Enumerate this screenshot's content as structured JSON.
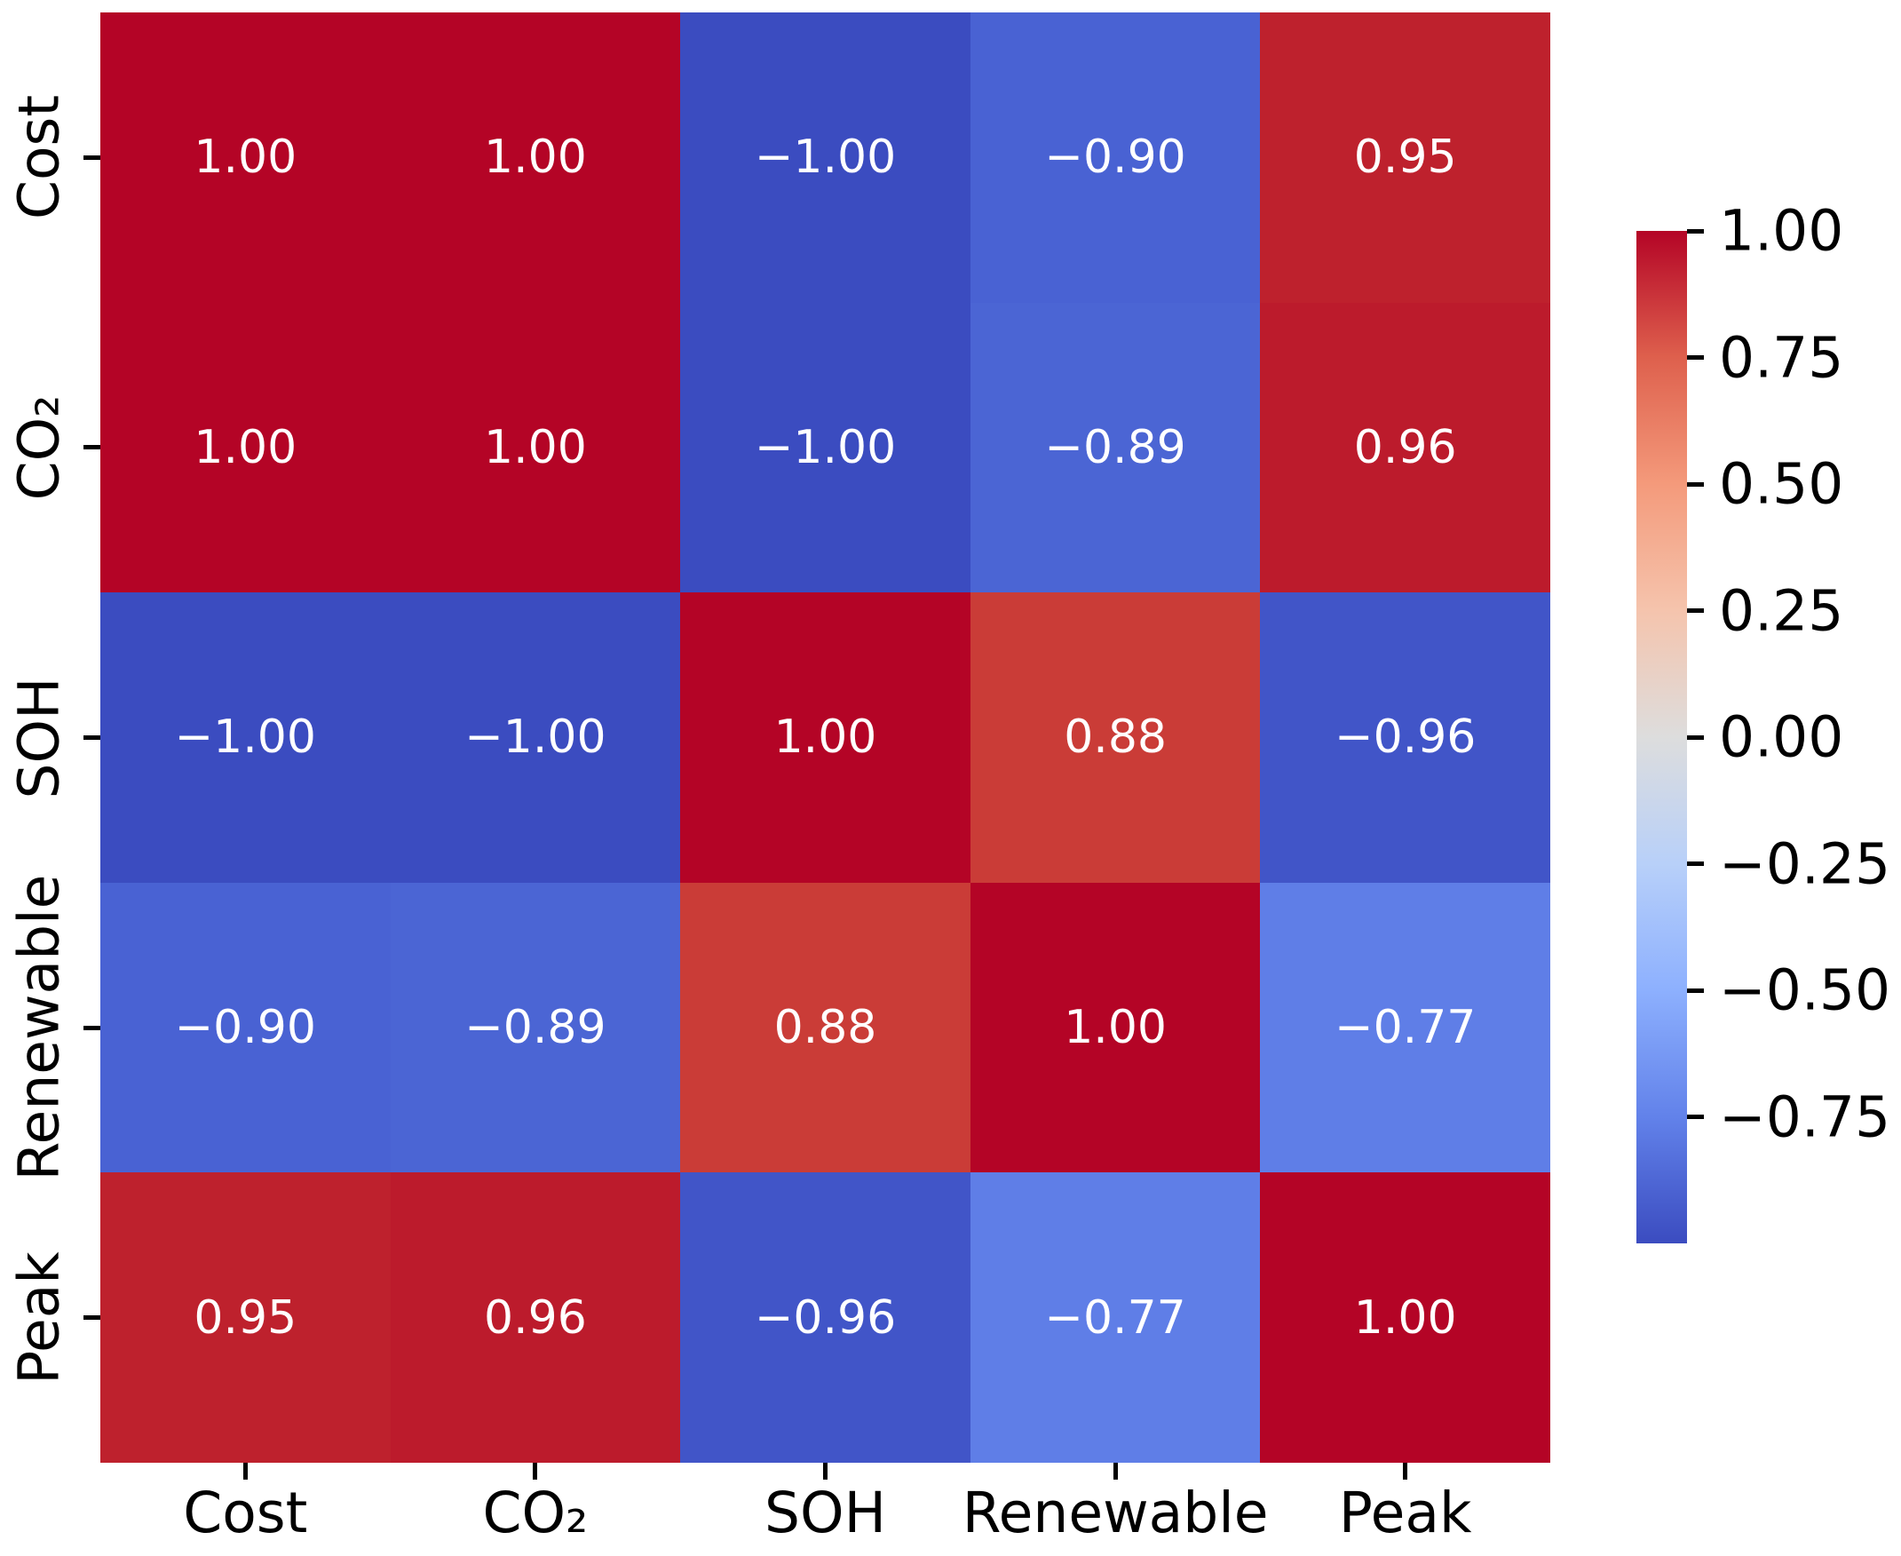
{
  "figure": {
    "background": "#ffffff",
    "axis_text_color": "#000000"
  },
  "chart_data": {
    "type": "heatmap",
    "title": "",
    "xlabel": "",
    "ylabel": "",
    "colormap": "coolwarm",
    "vmin": -1.0,
    "vmax": 1.0,
    "grid": false,
    "legend_position": "right-colorbar",
    "categories": [
      "Cost",
      "CO₂",
      "SOH",
      "Renewable",
      "Peak"
    ],
    "category_keys": [
      "cost",
      "co2",
      "soh",
      "renewable",
      "peak"
    ],
    "x_tick_labels": [
      "Cost",
      "CO₂",
      "SOH",
      "Renewable",
      "Peak"
    ],
    "y_tick_labels": [
      "Cost",
      "CO₂",
      "SOH",
      "Renewable",
      "Peak"
    ],
    "matrix": [
      [
        1.0,
        1.0,
        -1.0,
        -0.9,
        0.95
      ],
      [
        1.0,
        1.0,
        -1.0,
        -0.89,
        0.96
      ],
      [
        -1.0,
        -1.0,
        1.0,
        0.88,
        -0.96
      ],
      [
        -0.9,
        -0.89,
        0.88,
        1.0,
        -0.77
      ],
      [
        0.95,
        0.96,
        -0.96,
        -0.77,
        1.0
      ]
    ],
    "cell_labels": [
      [
        "1.00",
        "1.00",
        "−1.00",
        "−0.90",
        "0.95"
      ],
      [
        "1.00",
        "1.00",
        "−1.00",
        "−0.89",
        "0.96"
      ],
      [
        "−1.00",
        "−1.00",
        "1.00",
        "0.88",
        "−0.96"
      ],
      [
        "−0.90",
        "−0.89",
        "0.88",
        "1.00",
        "−0.77"
      ],
      [
        "0.95",
        "0.96",
        "−0.96",
        "−0.77",
        "1.00"
      ]
    ],
    "cell_colors": [
      [
        "#b40426",
        "#b40426",
        "#3b4cc0",
        "#4962d3",
        "#be212d"
      ],
      [
        "#b40426",
        "#b40426",
        "#3b4cc0",
        "#4b65d4",
        "#bc1b2c"
      ],
      [
        "#3b4cc0",
        "#3b4cc0",
        "#b40426",
        "#ca3c37",
        "#4155c8"
      ],
      [
        "#4962d3",
        "#4b65d4",
        "#ca3c37",
        "#b40426",
        "#5f7ee7"
      ],
      [
        "#be212d",
        "#bc1b2c",
        "#4155c8",
        "#5f7ee7",
        "#b40426"
      ]
    ],
    "annotation_text_color": "#ffffff",
    "colorbar": {
      "tick_labels": [
        "1.00",
        "0.75",
        "0.50",
        "0.25",
        "0.00",
        "−0.25",
        "−0.50",
        "−0.75"
      ],
      "tick_values": [
        1.0,
        0.75,
        0.5,
        0.25,
        0.0,
        -0.25,
        -0.5,
        -0.75
      ],
      "gradient": [
        {
          "pos": 0.0,
          "color": "#b40426"
        },
        {
          "pos": 12.5,
          "color": "#de604d"
        },
        {
          "pos": 25.0,
          "color": "#f49a7b"
        },
        {
          "pos": 37.5,
          "color": "#f5c4ad"
        },
        {
          "pos": 50.0,
          "color": "#dddddd"
        },
        {
          "pos": 62.5,
          "color": "#b8d0f9"
        },
        {
          "pos": 75.0,
          "color": "#8db0fe"
        },
        {
          "pos": 87.5,
          "color": "#6282ea"
        },
        {
          "pos": 100.0,
          "color": "#3b4cc0"
        }
      ]
    }
  }
}
